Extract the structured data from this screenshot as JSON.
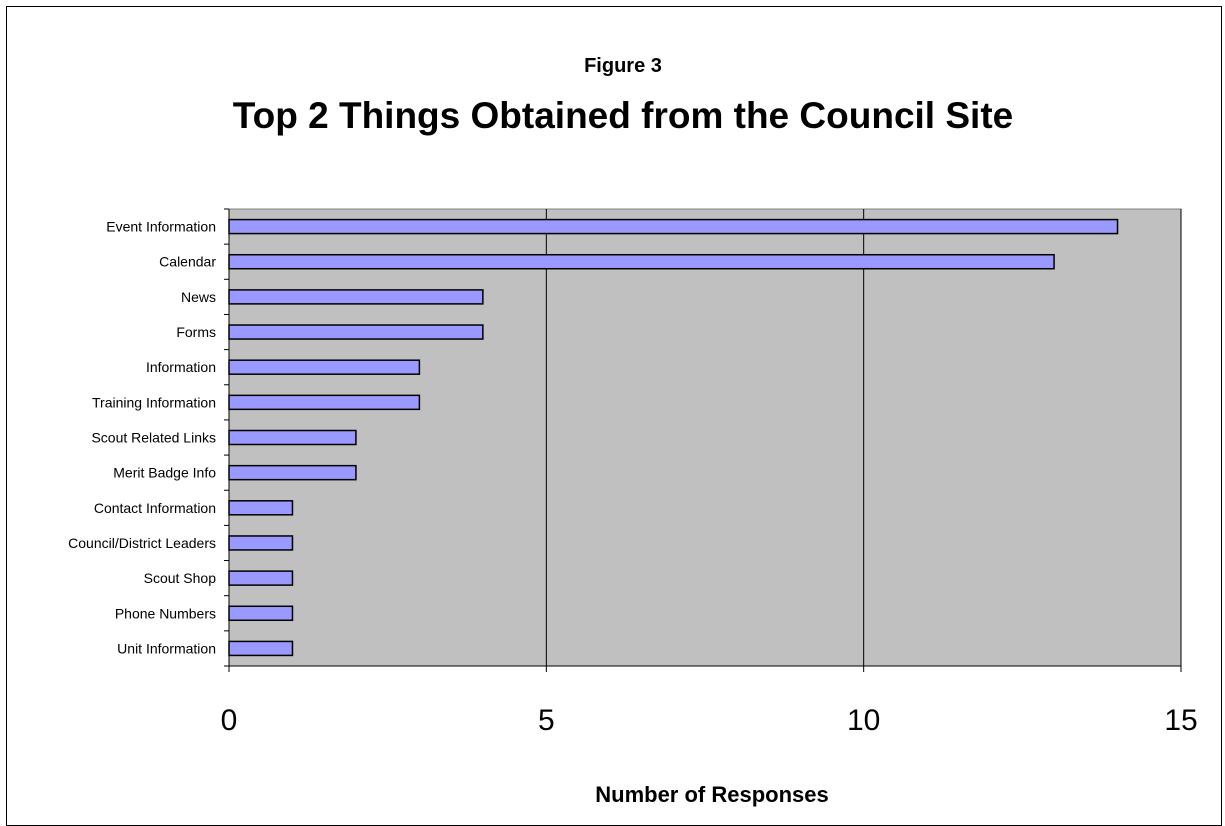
{
  "chart_data": {
    "type": "bar",
    "orientation": "horizontal",
    "figure_label": "Figure 3",
    "title": "Top 2 Things Obtained from the Council Site",
    "xlabel": "Number of Responses",
    "ylabel": "",
    "xlim": [
      0,
      15
    ],
    "x_ticks": [
      0,
      5,
      10,
      15
    ],
    "grid": "vertical",
    "plot_background": "#c0c0c0",
    "bar_color": "#9999ff",
    "categories": [
      "Event Information",
      "Calendar",
      "News",
      "Forms",
      "Information",
      "Training Information",
      "Scout Related Links",
      "Merit Badge Info",
      "Contact Information",
      "Council/District Leaders",
      "Scout Shop",
      "Phone Numbers",
      "Unit Information"
    ],
    "values": [
      14,
      13,
      4,
      4,
      3,
      3,
      2,
      2,
      1,
      1,
      1,
      1,
      1
    ]
  }
}
